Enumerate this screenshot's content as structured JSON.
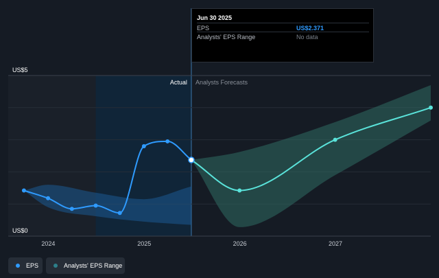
{
  "tooltip": {
    "date": "Jun 30 2025",
    "rows": [
      {
        "label": "EPS",
        "value": "US$2.371"
      },
      {
        "label": "Analysts' EPS Range",
        "value": "No data"
      }
    ]
  },
  "legend": [
    {
      "label": "EPS",
      "color": "#2f9bff"
    },
    {
      "label": "Analysts' EPS Range",
      "color": "#2d7f8a"
    }
  ],
  "chart_data": {
    "type": "line",
    "y_tick_labels": [
      "US$5",
      "US$0"
    ],
    "ylim": [
      0,
      5
    ],
    "x_tick_labels": [
      "2024",
      "2025",
      "2026",
      "2027"
    ],
    "xlim": [
      "2023-08-01",
      "2027-12-31"
    ],
    "actual_label": "Actual",
    "forecast_label": "Analysts Forecasts",
    "gridlines": true,
    "colors": {
      "eps": "#2f9bff",
      "forecast_line": "#5ae3da",
      "forecast_band": "#2f6b63",
      "past_band": "#1c5a92",
      "shade": "#102538"
    },
    "eps_actual": {
      "name": "EPS",
      "x": [
        "2023-09-30",
        "2023-12-31",
        "2024-03-31",
        "2024-06-30",
        "2024-09-30",
        "2024-12-31",
        "2025-03-31",
        "2025-06-30"
      ],
      "y": [
        1.42,
        1.18,
        0.85,
        0.95,
        0.72,
        2.8,
        2.95,
        2.371
      ]
    },
    "eps_forecast": {
      "x": [
        "2025-06-30",
        "2025-12-31",
        "2026-12-31",
        "2027-12-31"
      ],
      "y": [
        2.371,
        1.42,
        3.0,
        4.0
      ]
    },
    "forecast_range": {
      "x": [
        "2025-06-30",
        "2025-12-31",
        "2026-12-31",
        "2027-12-31"
      ],
      "low": [
        2.371,
        0.28,
        1.9,
        3.6
      ],
      "high": [
        2.371,
        2.62,
        3.55,
        4.7
      ]
    },
    "past_range": {
      "x": [
        "2023-09-30",
        "2023-12-31",
        "2024-06-30",
        "2024-12-31",
        "2025-06-30"
      ],
      "low": [
        1.42,
        0.9,
        0.62,
        0.45,
        0.35
      ],
      "high": [
        1.42,
        1.6,
        1.35,
        1.15,
        1.55
      ]
    }
  }
}
